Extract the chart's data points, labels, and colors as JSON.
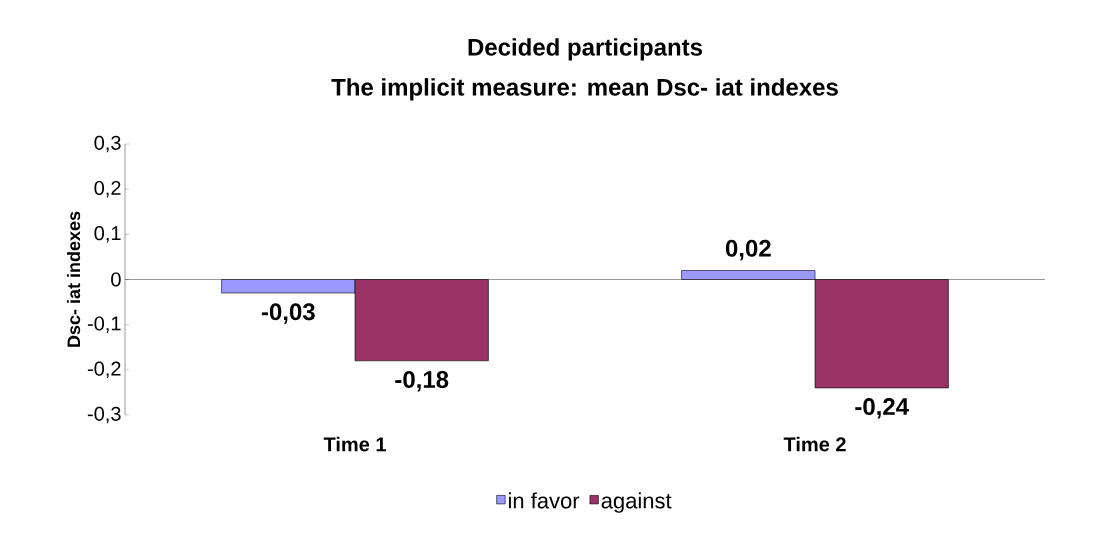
{
  "chart_data": {
    "type": "bar",
    "title": "Decided participants",
    "subtitle": "The implicit measure: mean Dsc- iat indexes",
    "ylabel": "Dsc- iat indexes",
    "categories": [
      "Time 1",
      "Time 2"
    ],
    "series": [
      {
        "name": "in favor",
        "color": "#9999ff",
        "values": [
          -0.03,
          0.02
        ],
        "value_labels": [
          "-0,03",
          "0,02"
        ]
      },
      {
        "name": "against",
        "color": "#993366",
        "values": [
          -0.18,
          -0.24
        ],
        "value_labels": [
          "-0,18",
          "-0,24"
        ]
      }
    ],
    "ylim": [
      -0.3,
      0.3
    ],
    "yticks": [
      {
        "value": -0.3,
        "label": "-0,3"
      },
      {
        "value": -0.2,
        "label": "-0,2"
      },
      {
        "value": -0.1,
        "label": "-0,1"
      },
      0,
      {
        "value": 0.1,
        "label": "0,1"
      },
      {
        "value": 0.2,
        "label": "0,2"
      },
      {
        "value": 0.3,
        "label": "0,3"
      }
    ],
    "legend": "bottom"
  }
}
